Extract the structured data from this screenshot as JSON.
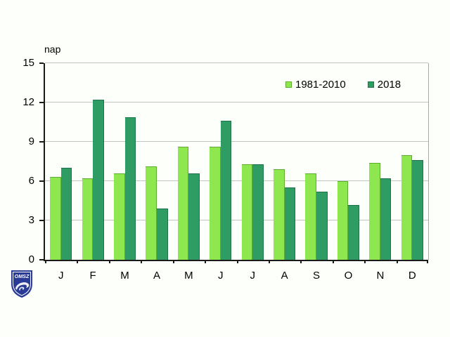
{
  "chart_data": {
    "type": "bar",
    "title": "",
    "ylabel": "nap",
    "categories": [
      "J",
      "F",
      "M",
      "A",
      "M",
      "J",
      "J",
      "A",
      "S",
      "O",
      "N",
      "D"
    ],
    "series": [
      {
        "name": "1981-2010",
        "color": "#8FE74F",
        "border_color": "#5FAD2E",
        "values": [
          6.3,
          6.2,
          6.6,
          7.1,
          8.6,
          8.6,
          7.3,
          6.9,
          6.6,
          6.0,
          7.4,
          8.0
        ]
      },
      {
        "name": "2018",
        "color": "#2F9D63",
        "border_color": "#1D7347",
        "values": [
          7.0,
          12.2,
          10.9,
          3.9,
          6.6,
          10.6,
          7.3,
          5.5,
          5.2,
          4.2,
          6.2,
          7.6
        ]
      }
    ],
    "ylim": [
      0,
      15
    ],
    "yticks": [
      0,
      3,
      6,
      9,
      12,
      15
    ],
    "grid": true,
    "legend_position": "top-right-inside"
  },
  "colors": {
    "background": "#FDFFFA",
    "grid": "#C2C2C2",
    "axis": "#1A1A1A",
    "plot_border": "#A8A8A8",
    "text": "#000000"
  },
  "logo": {
    "text": "OMSZ",
    "shield_color": "#2A3B96",
    "detail_color": "#FFFFFF"
  }
}
